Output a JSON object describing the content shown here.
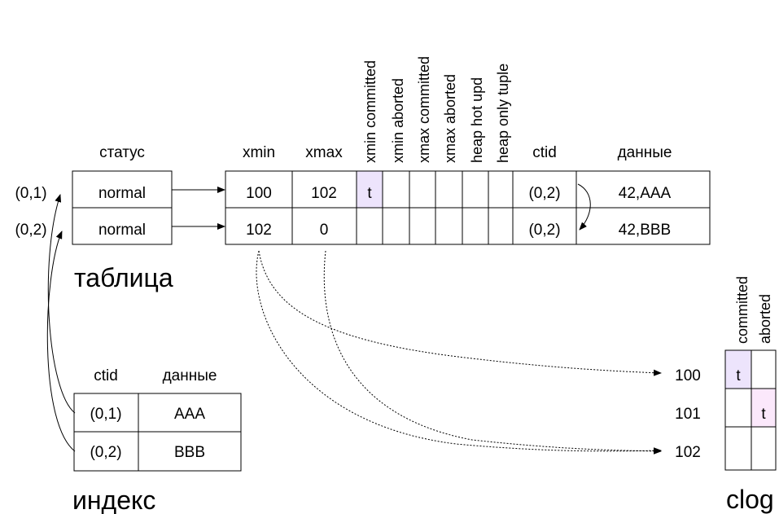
{
  "table": {
    "title": "таблица",
    "status_header": "статус",
    "pointers": [
      "(0,1)",
      "(0,2)"
    ],
    "status": [
      "normal",
      "normal"
    ],
    "headers": {
      "xmin": "xmin",
      "xmax": "xmax",
      "ctid": "ctid",
      "data": "данные"
    },
    "flags": [
      "xmin committed",
      "xmin aborted",
      "xmax committed",
      "xmax aborted",
      "heap hot upd",
      "heap only tuple"
    ],
    "rows": [
      {
        "xmin": "100",
        "xmax": "102",
        "flag_marks": [
          "t",
          "",
          "",
          "",
          "",
          ""
        ],
        "ctid": "(0,2)",
        "data": "42,AAA"
      },
      {
        "xmin": "102",
        "xmax": "0",
        "flag_marks": [
          "",
          "",
          "",
          "",
          "",
          ""
        ],
        "ctid": "(0,2)",
        "data": "42,BBB"
      }
    ]
  },
  "index": {
    "title": "индекс",
    "headers": {
      "ctid": "ctid",
      "data": "данные"
    },
    "rows": [
      {
        "ctid": "(0,1)",
        "data": "AAA"
      },
      {
        "ctid": "(0,2)",
        "data": "BBB"
      }
    ]
  },
  "clog": {
    "title": "clog",
    "headers": [
      "committed",
      "aborted"
    ],
    "rows": [
      {
        "xid": "100",
        "committed": "t",
        "aborted": ""
      },
      {
        "xid": "101",
        "committed": "",
        "aborted": "t"
      },
      {
        "xid": "102",
        "committed": "",
        "aborted": ""
      }
    ]
  },
  "colors": {
    "committed_mark": "#ede4fc",
    "aborted_mark": "#fbe8fb",
    "line": "#000000"
  }
}
